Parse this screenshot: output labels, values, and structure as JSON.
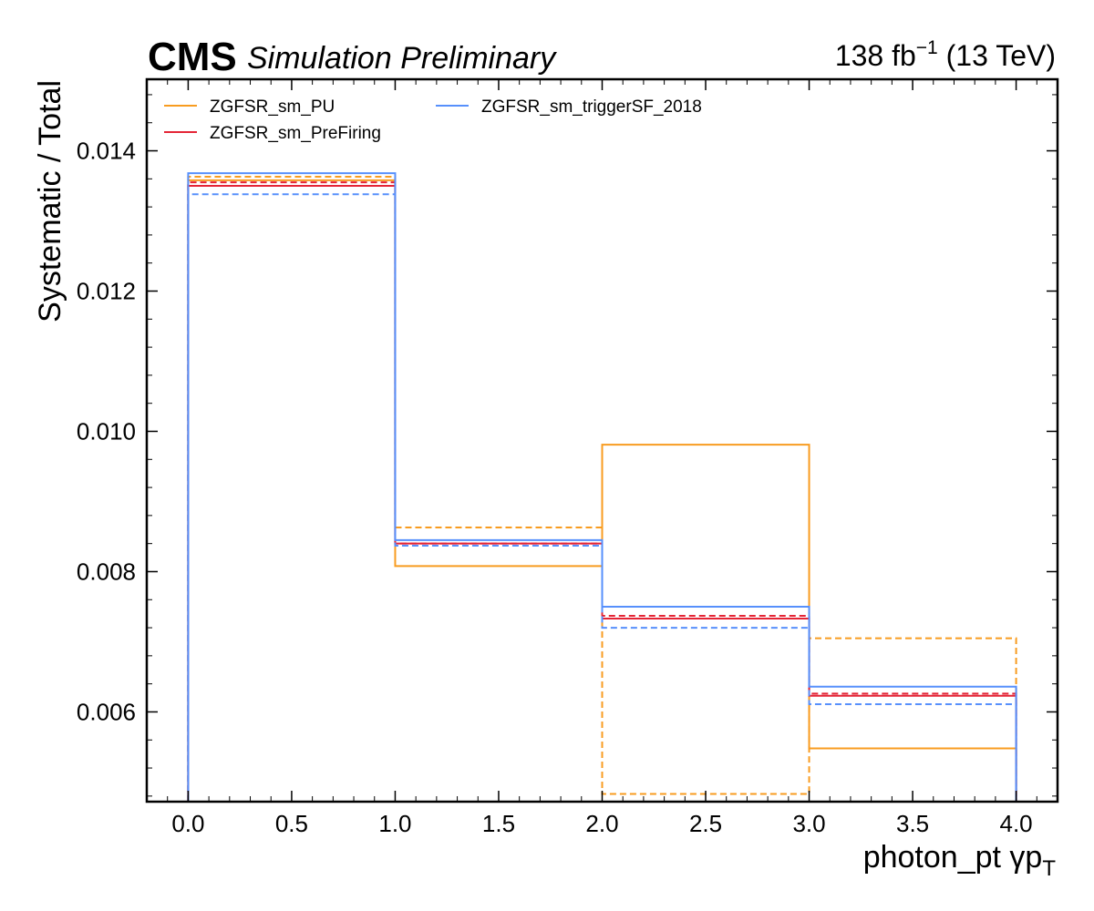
{
  "header": {
    "experiment": "CMS",
    "status": "Simulation Preliminary",
    "lumi_value": "138 fb",
    "lumi_exponent": "−1",
    "lumi_energy": " (13 TeV)"
  },
  "chart_data": {
    "type": "step-histogram",
    "xlabel": "photon_pt   γp",
    "xlabel_subscript": "T",
    "ylabel": "Systematic / Total",
    "xlim": [
      -0.2,
      4.2
    ],
    "ylim": [
      0.00472,
      0.01502
    ],
    "x_ticks": [
      0.0,
      0.5,
      1.0,
      1.5,
      2.0,
      2.5,
      3.0,
      3.5,
      4.0
    ],
    "x_tick_labels": [
      "0.0",
      "0.5",
      "1.0",
      "1.5",
      "2.0",
      "2.5",
      "3.0",
      "3.5",
      "4.0"
    ],
    "y_ticks": [
      0.006,
      0.008,
      0.01,
      0.012,
      0.014
    ],
    "y_tick_labels": [
      "0.006",
      "0.008",
      "0.010",
      "0.012",
      "0.014"
    ],
    "bin_edges": [
      0,
      1,
      2,
      3,
      4
    ],
    "legend_position": "top-left, two columns",
    "series": [
      {
        "name": "ZGFSR_sm_PU",
        "variation": "up",
        "color": "#f89c20",
        "linestyle": "solid",
        "values": [
          0.01358,
          0.00808,
          0.00981,
          0.00548
        ]
      },
      {
        "name": "ZGFSR_sm_PU",
        "variation": "down",
        "color": "#f89c20",
        "linestyle": "dashed",
        "values": [
          0.01363,
          0.00863,
          0.00483,
          0.00705
        ]
      },
      {
        "name": "ZGFSR_sm_PreFiring",
        "variation": "up",
        "color": "#e42536",
        "linestyle": "solid",
        "values": [
          0.0135,
          0.0084,
          0.00733,
          0.00623
        ]
      },
      {
        "name": "ZGFSR_sm_PreFiring",
        "variation": "down",
        "color": "#e42536",
        "linestyle": "dashed",
        "values": [
          0.01355,
          0.0084,
          0.00737,
          0.00626
        ]
      },
      {
        "name": "ZGFSR_sm_triggerSF_2018",
        "variation": "up",
        "color": "#5790fc",
        "linestyle": "solid",
        "values": [
          0.01368,
          0.00845,
          0.0075,
          0.00636
        ]
      },
      {
        "name": "ZGFSR_sm_triggerSF_2018",
        "variation": "down",
        "color": "#5790fc",
        "linestyle": "dashed",
        "values": [
          0.01338,
          0.00837,
          0.0072,
          0.00611
        ]
      }
    ],
    "legend": [
      {
        "label": "ZGFSR_sm_PU",
        "color": "#f89c20"
      },
      {
        "label": "ZGFSR_sm_PreFiring",
        "color": "#e42536"
      },
      {
        "label": "ZGFSR_sm_triggerSF_2018",
        "color": "#5790fc"
      }
    ]
  }
}
